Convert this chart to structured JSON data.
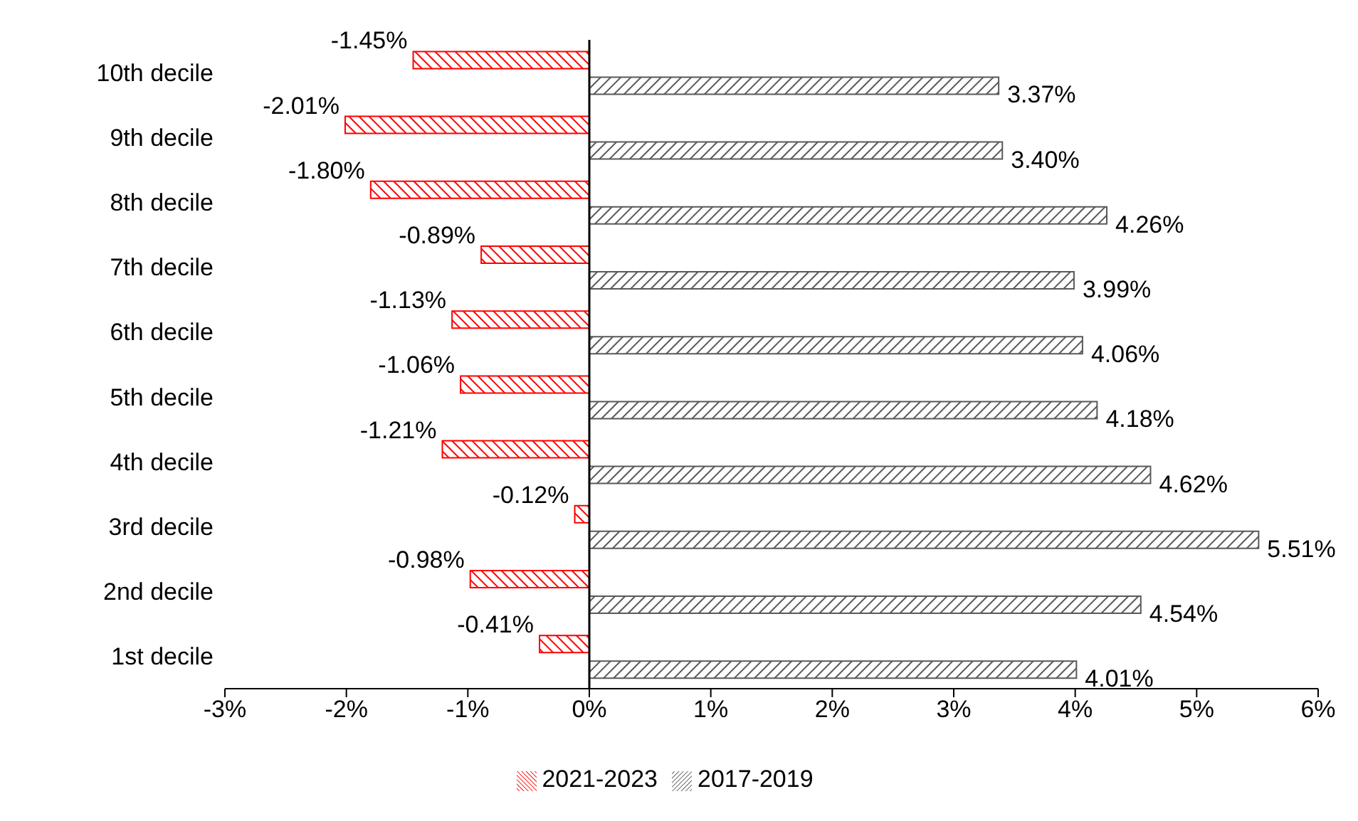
{
  "chart_data": {
    "type": "bar",
    "orientation": "horizontal",
    "categories": [
      "10th decile",
      "9th decile",
      "8th decile",
      "7th decile",
      "6th decile",
      "5th decile",
      "4th decile",
      "3rd decile",
      "2nd decile",
      "1st decile"
    ],
    "series": [
      {
        "name": "2021-2023",
        "color": "#ff0000",
        "values": [
          -1.45,
          -2.01,
          -1.8,
          -0.89,
          -1.13,
          -1.06,
          -1.21,
          -0.12,
          -0.98,
          -0.41
        ],
        "value_labels": [
          "-1.45%",
          "-2.01%",
          "-1.80%",
          "-0.89%",
          "-1.13%",
          "-1.06%",
          "-1.21%",
          "-0.12%",
          "-0.98%",
          "-0.41%"
        ]
      },
      {
        "name": "2017-2019",
        "color": "#595959",
        "values": [
          3.37,
          3.4,
          4.26,
          3.99,
          4.06,
          4.18,
          4.62,
          5.51,
          4.54,
          4.01
        ],
        "value_labels": [
          "3.37%",
          "3.40%",
          "4.26%",
          "3.99%",
          "4.06%",
          "4.18%",
          "4.62%",
          "5.51%",
          "4.54%",
          "4.01%"
        ]
      }
    ],
    "xlim": [
      -3,
      6
    ],
    "xticks": [
      {
        "value": -3,
        "label": "-3%"
      },
      {
        "value": -2,
        "label": "-2%"
      },
      {
        "value": -1,
        "label": "-1%"
      },
      {
        "value": 0,
        "label": "0%"
      },
      {
        "value": 1,
        "label": "1%"
      },
      {
        "value": 2,
        "label": "2%"
      },
      {
        "value": 3,
        "label": "3%"
      },
      {
        "value": 4,
        "label": "4%"
      },
      {
        "value": 5,
        "label": "5%"
      },
      {
        "value": 6,
        "label": "6%"
      }
    ],
    "legend": "bottom"
  }
}
